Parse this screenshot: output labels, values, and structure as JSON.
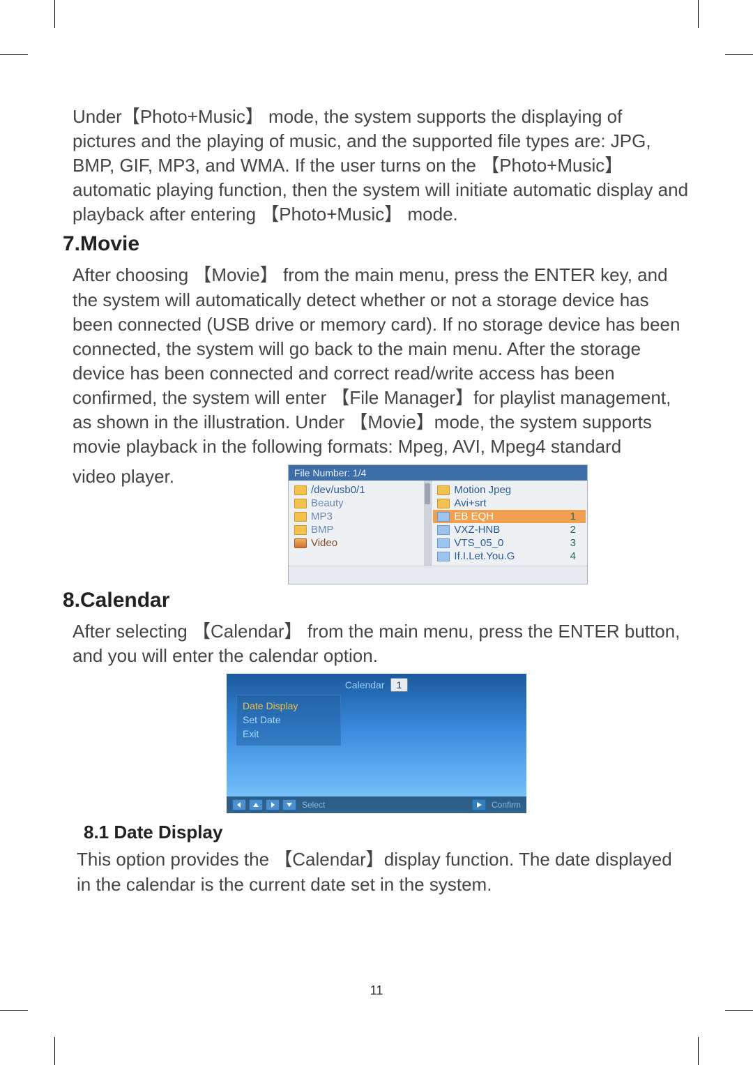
{
  "crop_color": "#000000",
  "paragraphs": {
    "photo_music": "Under【Photo+Music】 mode, the system supports the displaying of pictures and the playing of music, and the supported file types are: JPG, BMP, GIF, MP3, and WMA. If the user turns on the 【Photo+Music】automatic playing function, then the system will initiate automatic display and playback after entering 【Photo+Music】 mode.",
    "movie_heading": "7.Movie",
    "movie_body_1": "After choosing 【Movie】 from the main menu, press the ENTER key, and the system will automatically detect whether or not a storage device has been connected (USB drive or memory card). If no storage device has been connected, the system will go back to the main menu. After the storage device has been connected and correct read/write access has been confirmed, the system will enter 【File Manager】for playlist management, as shown in the illustration. Under 【Movie】mode, the system supports movie playback in the following formats: Mpeg, AVI, Mpeg4 standard",
    "movie_body_2_label": "video player.",
    "calendar_heading": "8.Calendar",
    "calendar_body": "After selecting 【Calendar】 from the main menu, press the ENTER button, and you will enter the calendar option.",
    "date_display_heading": "8.1 Date Display",
    "date_display_body": "This option provides the 【Calendar】display function. The date displayed in the calendar is the current date set in the system."
  },
  "file_manager": {
    "header": "File Number: 1/4",
    "left": [
      {
        "label": "/dev/usb0/1",
        "icon": "folder"
      },
      {
        "label": "Beauty",
        "icon": "folder"
      },
      {
        "label": "MP3",
        "icon": "folder"
      },
      {
        "label": "BMP",
        "icon": "folder"
      },
      {
        "label": "Video",
        "icon": "video"
      }
    ],
    "right": [
      {
        "label": "Motion Jpeg",
        "num": "",
        "icon": "folder"
      },
      {
        "label": "Avi+srt",
        "num": "",
        "icon": "folder"
      },
      {
        "label": "EB EQH",
        "num": "1",
        "icon": "movie",
        "highlight": true
      },
      {
        "label": "VXZ-HNB",
        "num": "2",
        "icon": "movie"
      },
      {
        "label": "VTS_05_0",
        "num": "3",
        "icon": "movie"
      },
      {
        "label": "If.I.Let.You.G",
        "num": "4",
        "icon": "movie"
      }
    ]
  },
  "calendar": {
    "title": "Calendar",
    "badge": "1",
    "panel": [
      {
        "label": "Date Display",
        "selected": true
      },
      {
        "label": "Set Date",
        "selected": false
      },
      {
        "label": "Exit",
        "selected": false
      }
    ],
    "bar_select": "Select",
    "bar_confirm": "Confirm"
  },
  "page_number": "11"
}
